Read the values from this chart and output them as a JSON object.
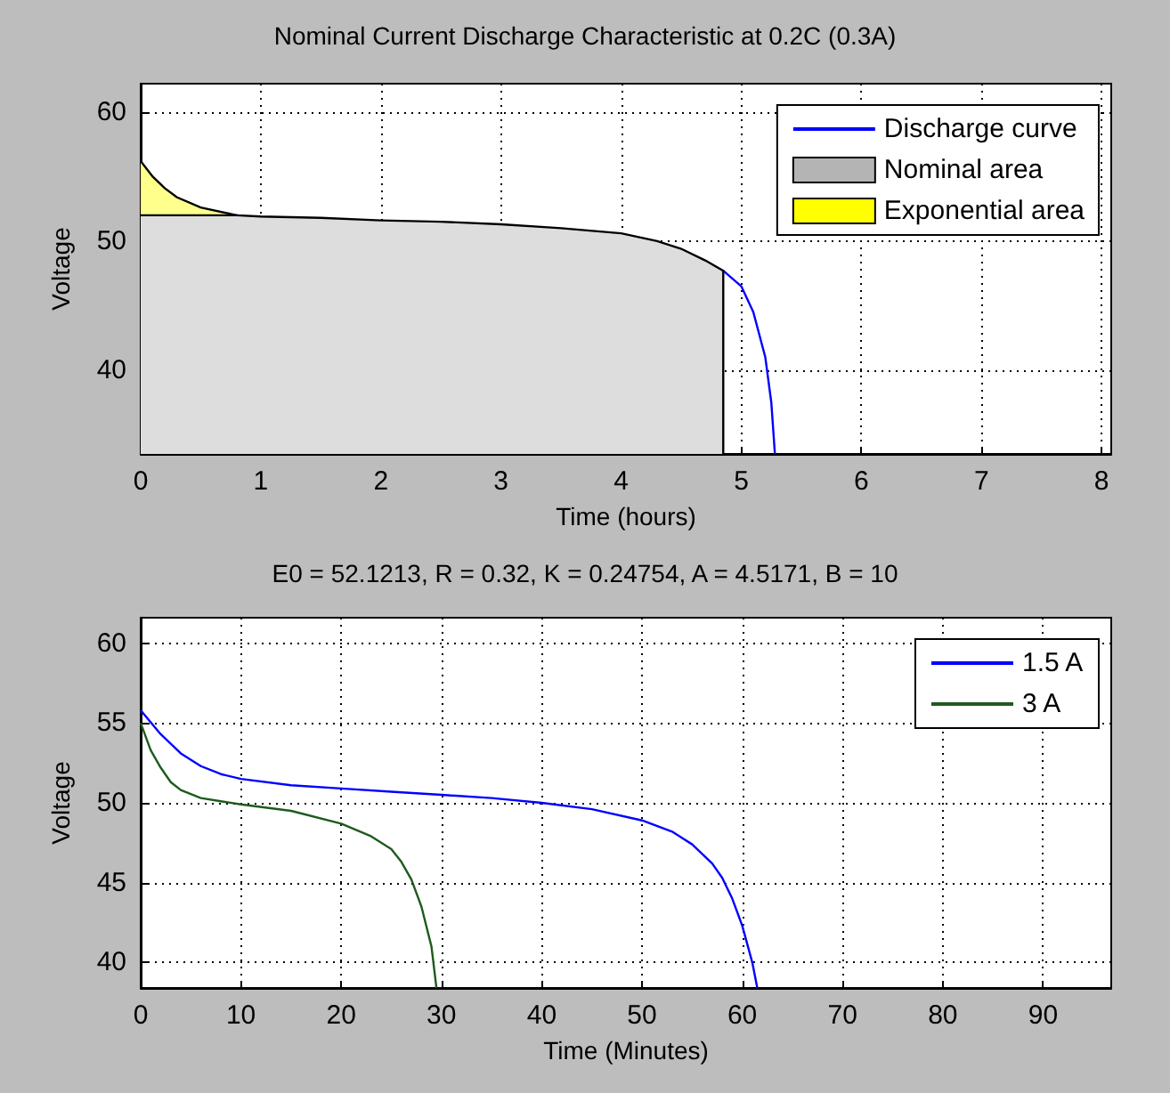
{
  "chart_data": [
    {
      "type": "line",
      "title": "Nominal Current Discharge Characteristic at 0.2C (0.3A)",
      "xlabel": "Time (hours)",
      "ylabel": "Voltage",
      "xlim": [
        0,
        8.08
      ],
      "xticks": [
        0,
        1,
        2,
        3,
        4,
        5,
        6,
        7,
        8
      ],
      "ylim": [
        33.5,
        62.2
      ],
      "yticks": [
        40,
        50,
        60
      ],
      "grid": true,
      "legend": "top right",
      "marker": "none",
      "series": [
        {
          "name": "Discharge curve",
          "color": "#0000ff",
          "x": [
            4.85,
            5,
            5.1,
            5.2,
            5.25,
            5.28
          ],
          "values": [
            47.7,
            46.5,
            44.5,
            41,
            37.5,
            33.5
          ]
        },
        {
          "name": "Nominal area",
          "type": "area",
          "color": "#b4b4b4",
          "x": [
            0,
            0.8,
            1,
            1.5,
            2,
            2.5,
            3,
            3.5,
            4,
            4.3,
            4.5,
            4.7,
            4.85
          ],
          "values": [
            52,
            52,
            51.9,
            51.8,
            51.6,
            51.5,
            51.3,
            51,
            50.6,
            50,
            49.4,
            48.5,
            47.7
          ]
        },
        {
          "name": "Exponential area",
          "type": "area",
          "color": "#ffff00",
          "x": [
            0,
            0.1,
            0.2,
            0.3,
            0.5,
            0.8
          ],
          "values": [
            56.2,
            55,
            54.1,
            53.4,
            52.6,
            52
          ]
        }
      ]
    },
    {
      "type": "line",
      "title": "E0 = 52.1213, R = 0.32, K = 0.24754, A = 4.5171, B = 10",
      "xlabel": "Time (Minutes)",
      "ylabel": "Voltage",
      "xlim": [
        0,
        96.8
      ],
      "xticks": [
        0,
        10,
        20,
        30,
        40,
        50,
        60,
        70,
        80,
        90
      ],
      "ylim": [
        38.4,
        61.6
      ],
      "yticks": [
        40,
        45,
        50,
        55,
        60
      ],
      "grid": true,
      "legend": "top right",
      "marker": "none",
      "series": [
        {
          "name": "1.5 A",
          "color": "#0000ff",
          "x": [
            0,
            2,
            4,
            6,
            8,
            10,
            15,
            20,
            25,
            30,
            35,
            40,
            45,
            50,
            53,
            55,
            57,
            58,
            59,
            60,
            61,
            61.5
          ],
          "values": [
            55.8,
            54.3,
            53.1,
            52.3,
            51.8,
            51.5,
            51.1,
            50.9,
            50.7,
            50.5,
            50.3,
            50,
            49.6,
            48.9,
            48.2,
            47.4,
            46.2,
            45.3,
            44,
            42.3,
            40,
            38.4
          ]
        },
        {
          "name": "3 A",
          "color": "#1e5a1e",
          "x": [
            0,
            1,
            2,
            3,
            4,
            6,
            8,
            10,
            15,
            20,
            23,
            25,
            26,
            27,
            28,
            29,
            29.5
          ],
          "values": [
            55,
            53.3,
            52.2,
            51.3,
            50.8,
            50.3,
            50.1,
            49.9,
            49.5,
            48.7,
            47.9,
            47.1,
            46.3,
            45.2,
            43.5,
            41,
            38.4
          ]
        }
      ]
    }
  ]
}
